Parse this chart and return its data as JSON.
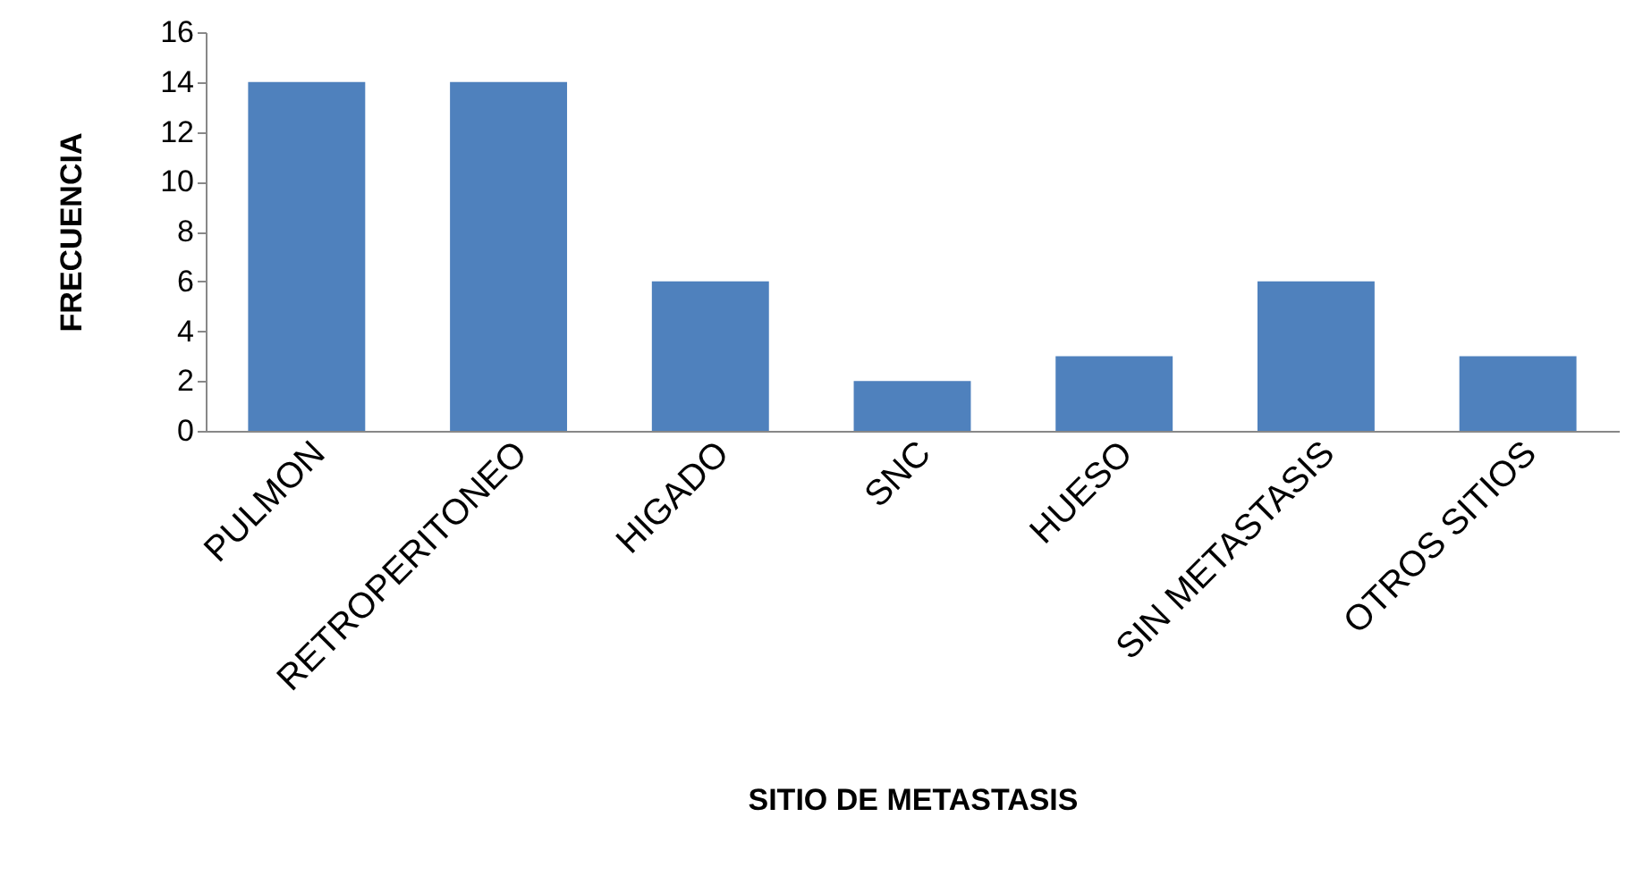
{
  "chart_data": {
    "type": "bar",
    "xlabel": "SITIO DE METASTASIS",
    "ylabel": "FRECUENCIA",
    "categories": [
      "PULMON",
      "RETROPERITONEO",
      "HIGADO",
      "SNC",
      "HUESO",
      "SIN METASTASIS",
      "OTROS SITIOS"
    ],
    "values": [
      14,
      14,
      6,
      2,
      3,
      6,
      3
    ],
    "color": "#4f81bd",
    "ylim": [
      0,
      16
    ],
    "yticks": [
      0,
      2,
      4,
      6,
      8,
      10,
      12,
      14,
      16
    ],
    "grid": false
  }
}
